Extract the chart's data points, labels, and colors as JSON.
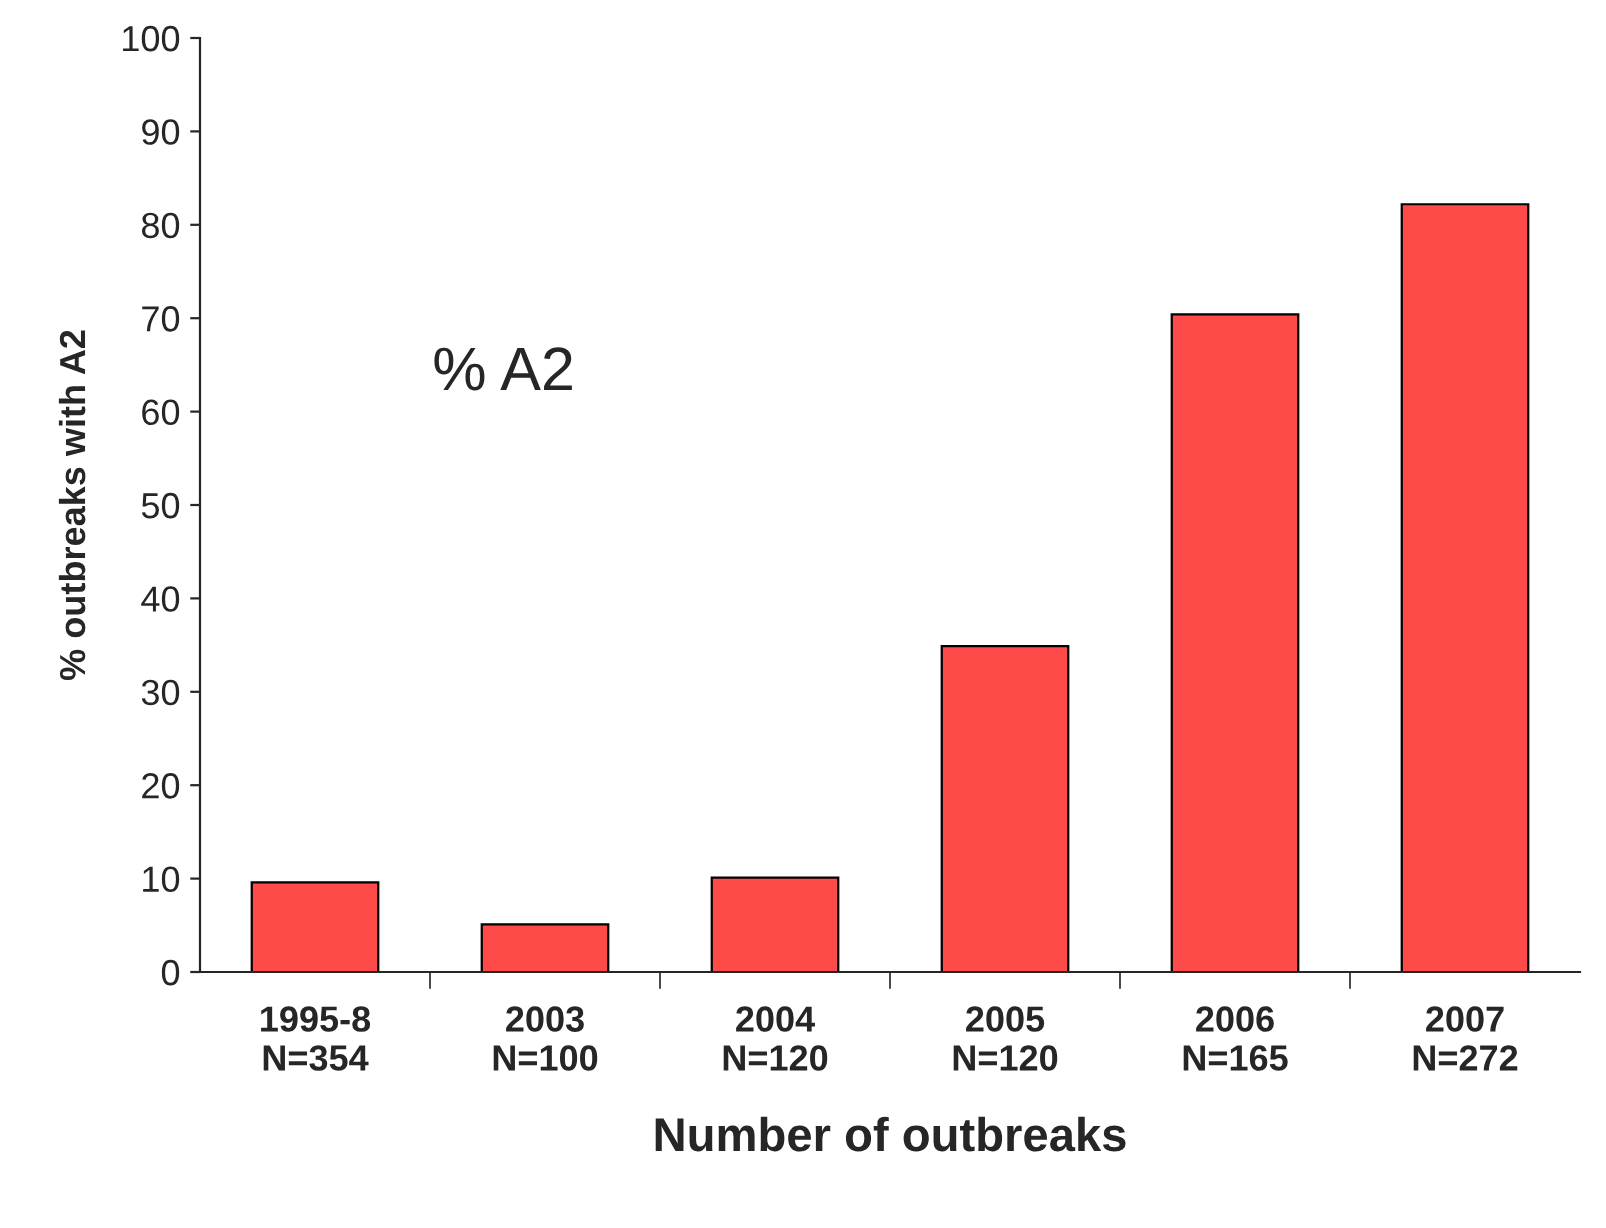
{
  "chart_data": {
    "type": "bar",
    "xlabel": "Number of outbreaks",
    "ylabel": "% outbreaks with A2",
    "categories": [
      "1995-8\nN=354",
      "2003\nN=100",
      "2004\nN=120",
      "2005\nN=120",
      "2006\nN=165",
      "2007\nN=272"
    ],
    "values": [
      9.6,
      5.1,
      10.1,
      34.9,
      70.4,
      82.2
    ],
    "color": "#ff4a4a",
    "ylim": [
      0,
      100
    ],
    "yticks": [
      0,
      10,
      20,
      30,
      40,
      50,
      60,
      70,
      80,
      90,
      100
    ],
    "grid": false,
    "annotations": [
      "% A2"
    ]
  }
}
